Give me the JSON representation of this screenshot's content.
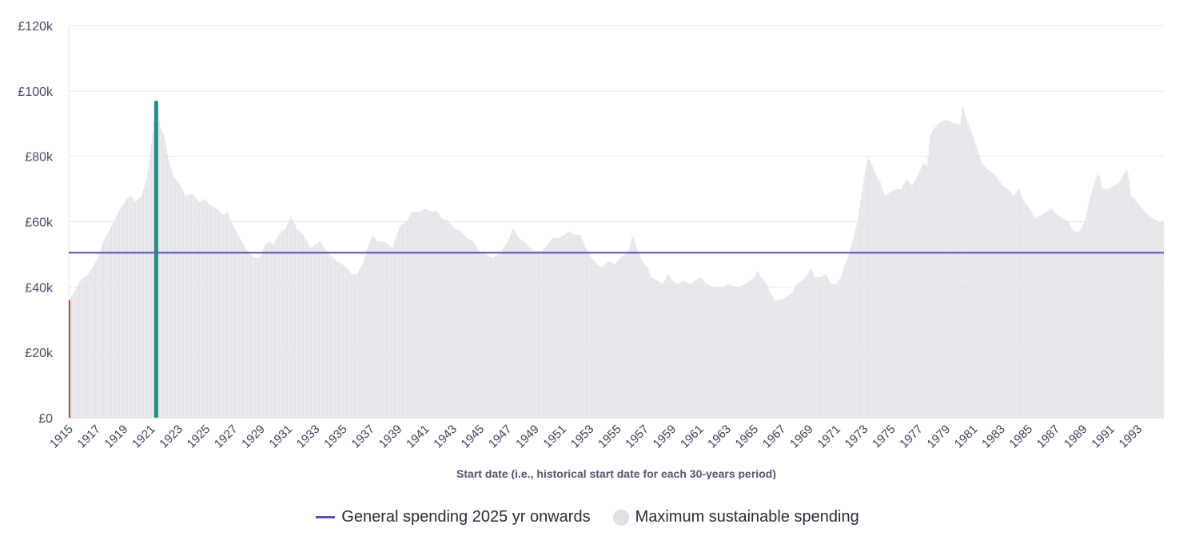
{
  "chart_data": {
    "type": "bar",
    "title": "",
    "xlabel": "Start date (i.e., historical start date for each 30-years period)",
    "ylabel": "",
    "ylim": [
      0,
      120000
    ],
    "yticks": [
      0,
      20000,
      40000,
      60000,
      80000,
      100000,
      120000
    ],
    "ytick_labels": [
      "£0",
      "£20k",
      "£40k",
      "£60k",
      "£80k",
      "£100k",
      "£120k"
    ],
    "xlim": [
      1915,
      1994.9
    ],
    "xtick_labels": [
      "1915",
      "1917",
      "1919",
      "1921",
      "1923",
      "1925",
      "1927",
      "1929",
      "1931",
      "1933",
      "1935",
      "1937",
      "1939",
      "1941",
      "1943",
      "1945",
      "1947",
      "1949",
      "1951",
      "1953",
      "1955",
      "1957",
      "1959",
      "1961",
      "1963",
      "1965",
      "1967",
      "1969",
      "1971",
      "1973",
      "1975",
      "1977",
      "1979",
      "1981",
      "1983",
      "1985",
      "1987",
      "1989",
      "1991",
      "1993"
    ],
    "series_sustainable_keypoints": [
      [
        1915.0,
        36000
      ],
      [
        1915.3,
        38000
      ],
      [
        1915.8,
        42000
      ],
      [
        1916.4,
        44000
      ],
      [
        1917.0,
        48000
      ],
      [
        1917.5,
        54000
      ],
      [
        1918.0,
        58000
      ],
      [
        1918.6,
        63000
      ],
      [
        1919.2,
        67000
      ],
      [
        1919.5,
        68000
      ],
      [
        1919.8,
        66000
      ],
      [
        1920.3,
        68000
      ],
      [
        1920.7,
        74000
      ],
      [
        1921.0,
        84000
      ],
      [
        1921.2,
        92000
      ],
      [
        1921.35,
        96000
      ],
      [
        1921.5,
        93000
      ],
      [
        1921.7,
        88000
      ],
      [
        1921.9,
        87000
      ],
      [
        1922.2,
        80000
      ],
      [
        1922.6,
        74000
      ],
      [
        1923.0,
        72000
      ],
      [
        1923.5,
        68000
      ],
      [
        1924.0,
        68500
      ],
      [
        1924.5,
        66000
      ],
      [
        1924.9,
        67000
      ],
      [
        1925.3,
        65000
      ],
      [
        1925.8,
        64000
      ],
      [
        1926.2,
        62000
      ],
      [
        1926.6,
        63000
      ],
      [
        1926.8,
        60000
      ],
      [
        1927.2,
        57000
      ],
      [
        1927.6,
        54000
      ],
      [
        1928.0,
        51000
      ],
      [
        1928.5,
        49000
      ],
      [
        1928.9,
        49000
      ],
      [
        1929.3,
        53000
      ],
      [
        1929.6,
        54000
      ],
      [
        1929.9,
        53000
      ],
      [
        1930.3,
        56000
      ],
      [
        1930.8,
        58000
      ],
      [
        1931.2,
        62000
      ],
      [
        1931.6,
        58000
      ],
      [
        1932.1,
        56000
      ],
      [
        1932.6,
        52000
      ],
      [
        1933.0,
        53000
      ],
      [
        1933.3,
        54000
      ],
      [
        1933.6,
        52000
      ],
      [
        1934.0,
        50000
      ],
      [
        1934.5,
        48000
      ],
      [
        1934.9,
        47000
      ],
      [
        1935.3,
        46000
      ],
      [
        1935.6,
        44000
      ],
      [
        1936.0,
        44000
      ],
      [
        1936.4,
        47000
      ],
      [
        1936.8,
        52000
      ],
      [
        1937.1,
        56000
      ],
      [
        1937.5,
        54000
      ],
      [
        1937.9,
        54000
      ],
      [
        1938.3,
        53000
      ],
      [
        1938.6,
        52000
      ],
      [
        1938.9,
        56000
      ],
      [
        1939.2,
        59000
      ],
      [
        1939.6,
        60000
      ],
      [
        1940.0,
        63000
      ],
      [
        1940.6,
        63000
      ],
      [
        1941.0,
        64000
      ],
      [
        1941.5,
        63000
      ],
      [
        1941.8,
        63500
      ],
      [
        1942.2,
        61000
      ],
      [
        1942.7,
        60000
      ],
      [
        1943.1,
        58000
      ],
      [
        1943.6,
        57000
      ],
      [
        1944.0,
        55000
      ],
      [
        1944.5,
        54000
      ],
      [
        1944.9,
        51000
      ],
      [
        1945.4,
        50000
      ],
      [
        1945.9,
        49000
      ],
      [
        1946.3,
        50000
      ],
      [
        1946.7,
        52000
      ],
      [
        1947.0,
        54000
      ],
      [
        1947.4,
        58000
      ],
      [
        1947.8,
        55000
      ],
      [
        1948.2,
        54000
      ],
      [
        1948.6,
        52000
      ],
      [
        1949.0,
        51000
      ],
      [
        1949.5,
        51000
      ],
      [
        1949.9,
        53000
      ],
      [
        1950.3,
        55000
      ],
      [
        1950.7,
        55000
      ],
      [
        1951.1,
        56000
      ],
      [
        1951.5,
        57000
      ],
      [
        1951.9,
        56000
      ],
      [
        1952.3,
        56000
      ],
      [
        1952.7,
        52000
      ],
      [
        1953.1,
        49000
      ],
      [
        1953.5,
        47000
      ],
      [
        1953.9,
        46000
      ],
      [
        1954.3,
        48000
      ],
      [
        1954.8,
        47000
      ],
      [
        1955.2,
        49000
      ],
      [
        1955.6,
        50000
      ],
      [
        1955.9,
        52000
      ],
      [
        1956.1,
        56000
      ],
      [
        1956.4,
        52000
      ],
      [
        1956.8,
        48000
      ],
      [
        1957.2,
        46000
      ],
      [
        1957.5,
        43000
      ],
      [
        1957.9,
        42000
      ],
      [
        1958.3,
        41000
      ],
      [
        1958.7,
        44000
      ],
      [
        1959.0,
        42000
      ],
      [
        1959.4,
        41000
      ],
      [
        1959.8,
        42000
      ],
      [
        1960.3,
        41000
      ],
      [
        1960.7,
        42000
      ],
      [
        1961.1,
        43000
      ],
      [
        1961.5,
        41000
      ],
      [
        1961.9,
        40000
      ],
      [
        1962.3,
        40000
      ],
      [
        1962.7,
        40000
      ],
      [
        1963.1,
        41000
      ],
      [
        1963.5,
        40000
      ],
      [
        1963.9,
        40000
      ],
      [
        1964.3,
        41000
      ],
      [
        1964.7,
        42000
      ],
      [
        1965.0,
        43000
      ],
      [
        1965.2,
        45000
      ],
      [
        1965.5,
        43000
      ],
      [
        1965.9,
        41000
      ],
      [
        1966.2,
        38000
      ],
      [
        1966.5,
        36000
      ],
      [
        1966.9,
        36000
      ],
      [
        1967.3,
        37000
      ],
      [
        1967.7,
        38000
      ],
      [
        1968.1,
        41000
      ],
      [
        1968.5,
        42000
      ],
      [
        1968.9,
        44000
      ],
      [
        1969.1,
        46000
      ],
      [
        1969.4,
        43000
      ],
      [
        1969.8,
        43000
      ],
      [
        1970.2,
        44000
      ],
      [
        1970.6,
        41000
      ],
      [
        1971.0,
        41000
      ],
      [
        1971.3,
        43000
      ],
      [
        1971.7,
        48000
      ],
      [
        1972.1,
        53000
      ],
      [
        1972.5,
        60000
      ],
      [
        1972.8,
        68000
      ],
      [
        1973.1,
        76000
      ],
      [
        1973.3,
        80000
      ],
      [
        1973.6,
        77000
      ],
      [
        1973.9,
        74000
      ],
      [
        1974.2,
        72000
      ],
      [
        1974.5,
        68000
      ],
      [
        1974.9,
        69000
      ],
      [
        1975.3,
        70000
      ],
      [
        1975.7,
        70000
      ],
      [
        1976.1,
        73000
      ],
      [
        1976.5,
        71000
      ],
      [
        1976.9,
        74000
      ],
      [
        1977.3,
        78000
      ],
      [
        1977.6,
        77000
      ],
      [
        1977.8,
        86000
      ],
      [
        1978.0,
        88000
      ],
      [
        1978.4,
        90000
      ],
      [
        1978.8,
        91000
      ],
      [
        1979.2,
        91000
      ],
      [
        1979.6,
        90000
      ],
      [
        1980.0,
        90000
      ],
      [
        1980.2,
        96000
      ],
      [
        1980.5,
        91000
      ],
      [
        1980.8,
        88000
      ],
      [
        1981.2,
        83000
      ],
      [
        1981.6,
        78000
      ],
      [
        1982.0,
        76000
      ],
      [
        1982.4,
        75000
      ],
      [
        1982.8,
        73000
      ],
      [
        1983.1,
        71000
      ],
      [
        1983.5,
        70000
      ],
      [
        1983.9,
        68000
      ],
      [
        1984.3,
        70000
      ],
      [
        1984.7,
        66000
      ],
      [
        1985.1,
        64000
      ],
      [
        1985.5,
        61000
      ],
      [
        1985.9,
        62000
      ],
      [
        1986.3,
        63000
      ],
      [
        1986.7,
        64000
      ],
      [
        1987.1,
        62000
      ],
      [
        1987.5,
        61000
      ],
      [
        1987.9,
        60000
      ],
      [
        1988.3,
        57000
      ],
      [
        1988.7,
        57000
      ],
      [
        1989.1,
        60000
      ],
      [
        1989.4,
        66000
      ],
      [
        1989.8,
        72000
      ],
      [
        1990.1,
        75000
      ],
      [
        1990.4,
        70000
      ],
      [
        1990.8,
        70000
      ],
      [
        1991.2,
        71000
      ],
      [
        1991.6,
        72000
      ],
      [
        1992.0,
        75000
      ],
      [
        1992.2,
        76000
      ],
      [
        1992.5,
        68000
      ],
      [
        1992.9,
        66000
      ],
      [
        1993.3,
        64000
      ],
      [
        1993.7,
        62000
      ],
      [
        1994.1,
        61000
      ],
      [
        1994.5,
        60000
      ],
      [
        1994.9,
        60000
      ]
    ],
    "series": [
      {
        "name": "General spending 2025 yr onwards",
        "type": "line",
        "value": 50500,
        "color": "#5a4fb8"
      },
      {
        "name": "Maximum sustainable spending",
        "type": "bar",
        "color": "#dfe0e5"
      }
    ],
    "highlight_bars": [
      {
        "x": 1921.35,
        "value": 97000,
        "color": "#238f83"
      },
      {
        "x": 1915.0,
        "value": 36000,
        "color": "#e03344"
      }
    ],
    "legend_position": "bottom-center"
  },
  "legend": {
    "line_label": "General spending 2025 yr onwards",
    "bar_label": "Maximum sustainable spending"
  }
}
